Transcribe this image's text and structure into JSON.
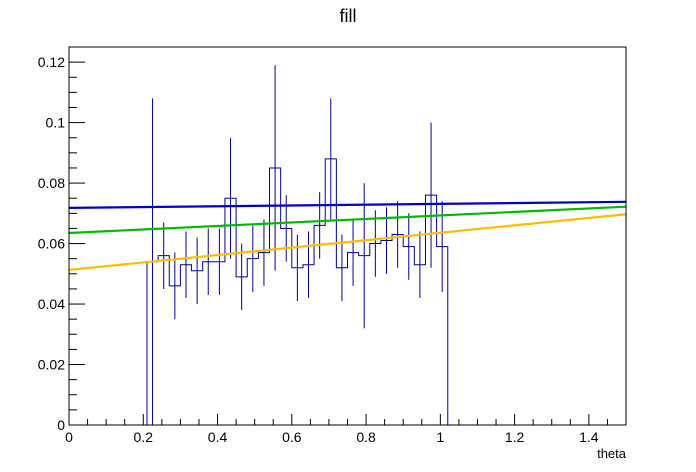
{
  "chart_data": {
    "type": "histogram",
    "title": "fill",
    "xlabel": "theta",
    "ylabel": "",
    "xlim": [
      0,
      1.5
    ],
    "ylim": [
      0,
      0.125
    ],
    "grid": false,
    "legend": "none",
    "x_ticks": [
      "0",
      "0.2",
      "0.4",
      "0.6",
      "0.8",
      "1",
      "1.2",
      "1.4"
    ],
    "y_ticks": [
      "0",
      "0.02",
      "0.04",
      "0.06",
      "0.08",
      "0.1",
      "0.12"
    ],
    "bin_width": 0.03,
    "histogram": {
      "color": "#000099",
      "bins": [
        {
          "x_low": 0.21,
          "value": 0.054,
          "err": 0.054
        },
        {
          "x_low": 0.24,
          "value": 0.056,
          "err": 0.011
        },
        {
          "x_low": 0.27,
          "value": 0.046,
          "err": 0.011
        },
        {
          "x_low": 0.3,
          "value": 0.053,
          "err": 0.011
        },
        {
          "x_low": 0.33,
          "value": 0.051,
          "err": 0.011
        },
        {
          "x_low": 0.36,
          "value": 0.054,
          "err": 0.011
        },
        {
          "x_low": 0.39,
          "value": 0.054,
          "err": 0.011
        },
        {
          "x_low": 0.42,
          "value": 0.075,
          "err": 0.02
        },
        {
          "x_low": 0.45,
          "value": 0.049,
          "err": 0.011
        },
        {
          "x_low": 0.48,
          "value": 0.055,
          "err": 0.011
        },
        {
          "x_low": 0.51,
          "value": 0.057,
          "err": 0.011
        },
        {
          "x_low": 0.54,
          "value": 0.085,
          "err": 0.034
        },
        {
          "x_low": 0.57,
          "value": 0.065,
          "err": 0.011
        },
        {
          "x_low": 0.6,
          "value": 0.052,
          "err": 0.011
        },
        {
          "x_low": 0.63,
          "value": 0.053,
          "err": 0.011
        },
        {
          "x_low": 0.66,
          "value": 0.066,
          "err": 0.011
        },
        {
          "x_low": 0.69,
          "value": 0.088,
          "err": 0.02
        },
        {
          "x_low": 0.72,
          "value": 0.052,
          "err": 0.011
        },
        {
          "x_low": 0.75,
          "value": 0.057,
          "err": 0.011
        },
        {
          "x_low": 0.78,
          "value": 0.056,
          "err": 0.024
        },
        {
          "x_low": 0.81,
          "value": 0.06,
          "err": 0.011
        },
        {
          "x_low": 0.84,
          "value": 0.061,
          "err": 0.011
        },
        {
          "x_low": 0.87,
          "value": 0.063,
          "err": 0.011
        },
        {
          "x_low": 0.9,
          "value": 0.059,
          "err": 0.011
        },
        {
          "x_low": 0.93,
          "value": 0.053,
          "err": 0.011
        },
        {
          "x_low": 0.96,
          "value": 0.076,
          "err": 0.024
        },
        {
          "x_low": 0.99,
          "value": 0.059,
          "err": 0.015
        }
      ]
    },
    "series": [
      {
        "type": "line",
        "color": "#0000cc",
        "x": [
          0,
          1.5
        ],
        "y": [
          0.0718,
          0.0738
        ]
      },
      {
        "type": "line",
        "color": "#00bb00",
        "x": [
          0,
          1.5
        ],
        "y": [
          0.0635,
          0.0722
        ]
      },
      {
        "type": "line",
        "color": "#ffbb00",
        "x": [
          0,
          1.5
        ],
        "y": [
          0.0513,
          0.0697
        ]
      }
    ]
  }
}
